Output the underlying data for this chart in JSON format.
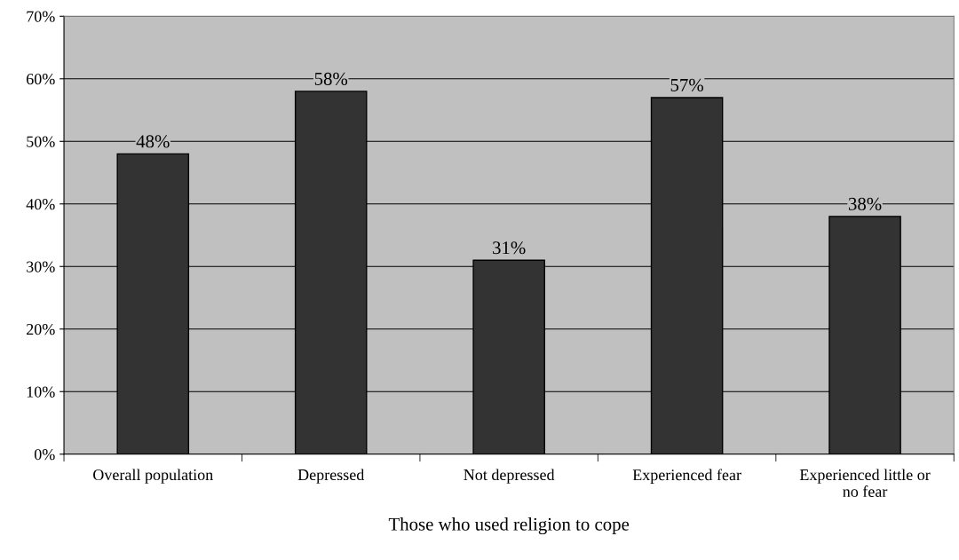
{
  "chart_data": {
    "type": "bar",
    "xlabel": "Those who used religion to cope",
    "categories": [
      "Overall population",
      "Depressed",
      "Not depressed",
      "Experienced fear",
      "Experienced little or\nno fear"
    ],
    "values": [
      48,
      58,
      31,
      57,
      38
    ],
    "value_labels": [
      "48%",
      "58%",
      "31%",
      "57%",
      "38%"
    ],
    "color": "#333333",
    "ylim": [
      0,
      70
    ],
    "yticks": [
      {
        "value": 0,
        "label": "0%"
      },
      {
        "value": 10,
        "label": "10%"
      },
      {
        "value": 20,
        "label": "20%"
      },
      {
        "value": 30,
        "label": "30%"
      },
      {
        "value": 40,
        "label": "40%"
      },
      {
        "value": 50,
        "label": "50%"
      },
      {
        "value": 60,
        "label": "60%"
      },
      {
        "value": 70,
        "label": "70%"
      }
    ],
    "grid": "y"
  }
}
